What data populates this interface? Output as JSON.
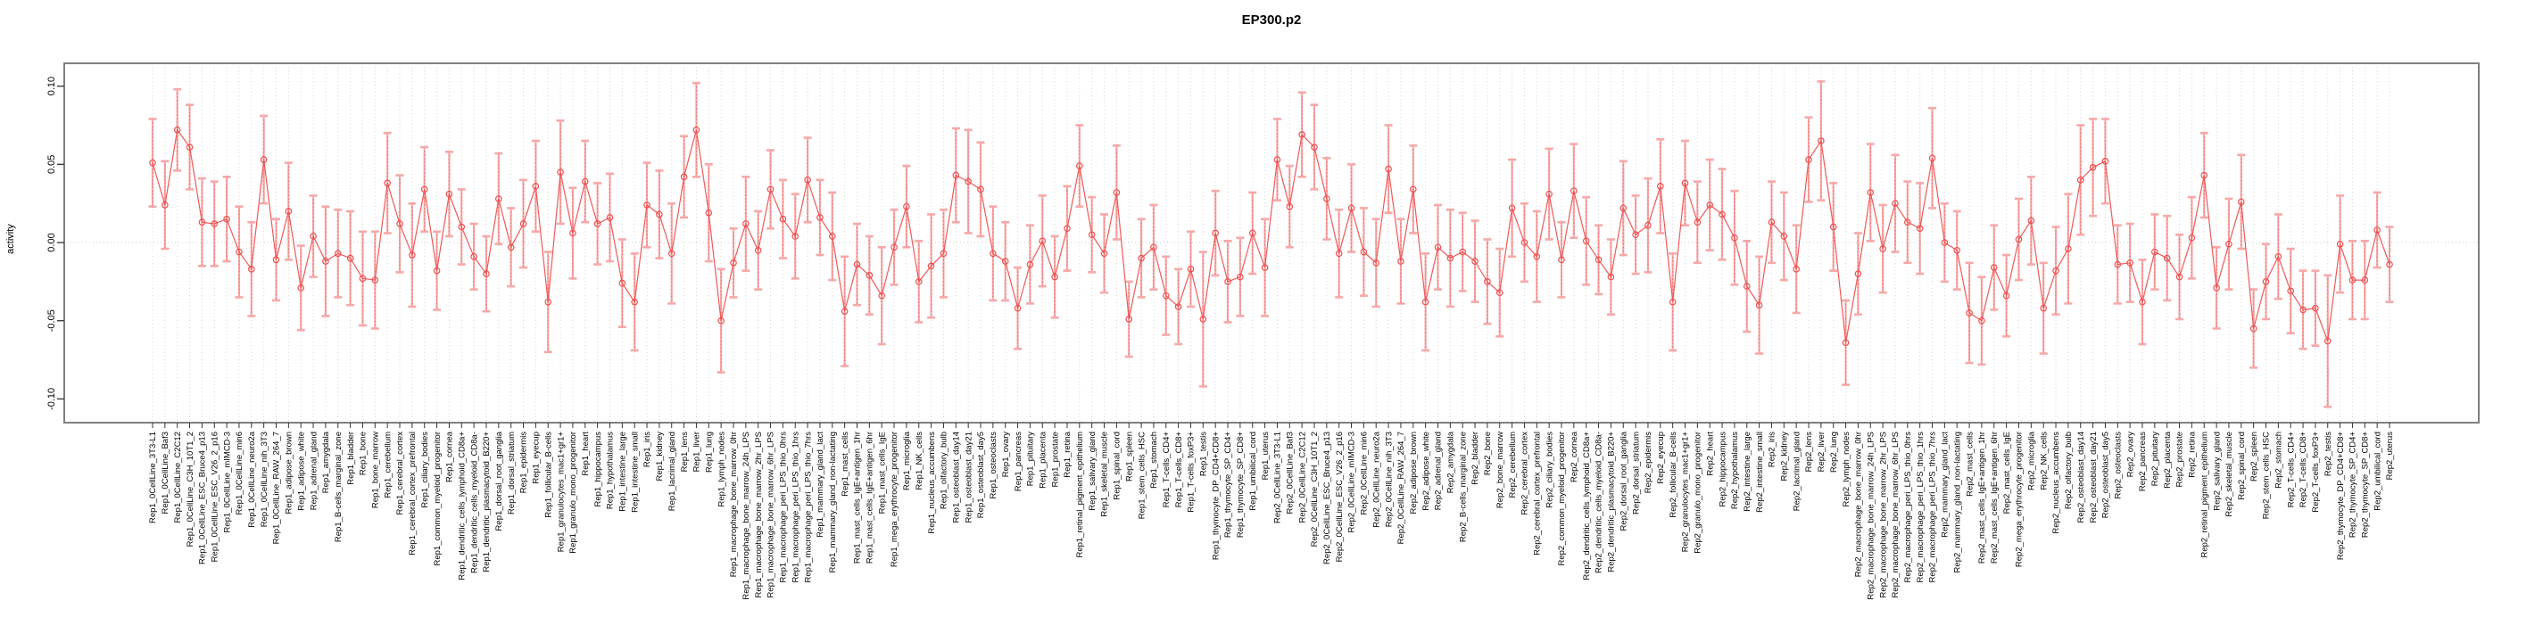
{
  "title": "EP300.p2",
  "chart_data": {
    "type": "line",
    "title": "EP300.p2",
    "subtitle": "",
    "xlabel": "",
    "ylabel": "activity",
    "legend": "none",
    "grid": "vertical dotted gridline per category, dotted horizontal line at zero",
    "ylim": [
      -0.115,
      0.1146
    ],
    "yticks": [
      -0.1,
      -0.05,
      0.0,
      0.05,
      0.1
    ],
    "ytick_labels": [
      "-0.10",
      "-0.05",
      "0.00",
      "0.05",
      "0.10"
    ],
    "colors": {
      "point_line": "#ee5050",
      "error_bar": "#f7a8a8",
      "error_core": "#ee6a6a",
      "gridline": "#d8d8d8",
      "zero_line": "#cccccc",
      "box_border": "#808080",
      "tick": "#333333",
      "text": "#000000"
    },
    "marker": "open-circle",
    "categories": [
      "Rep1_0CellLine_3T3-L1",
      "Rep1_0CellLine_Baf3",
      "Rep1_0CellLine_C2C12",
      "Rep1_0CellLine_C3H_10T1_2",
      "Rep1_0CellLine_ESC_Bruce4_p13",
      "Rep1_0CellLine_ESC_V26_2_p16",
      "Rep1_0CellLine_mIMCD-3",
      "Rep1_0CellLine_min6",
      "Rep1_0CellLine_neuro2a",
      "Rep1_0CellLine_nih_3T3",
      "Rep1_0CellLine_RAW_264_7",
      "Rep1_adipose_brown",
      "Rep1_adipose_white",
      "Rep1_adrenal_gland",
      "Rep1_amygdala",
      "Rep1_B-cells_marginal_zone",
      "Rep1_bladder",
      "Rep1_bone",
      "Rep1_bone_marrow",
      "Rep1_cerebellum",
      "Rep1_cerebral_cortex",
      "Rep1_cerebral_cortex_prefrontal",
      "Rep1_ciliary_bodies",
      "Rep1_common_myeloid_progenitor",
      "Rep1_cornea",
      "Rep1_dendritic_cells_lymphoid_CD8a+",
      "Rep1_dendritic_cells_myeloid_CD8a-",
      "Rep1_dendritic_plasmacytoid_B220+",
      "Rep1_dorsal_root_ganglia",
      "Rep1_dorsal_striatum",
      "Rep1_epidermis",
      "Rep1_eyecup",
      "Rep1_follicular_B-cells",
      "Rep1_granulocytes_mac1+gr1+",
      "Rep1_granulo_mono_progenitor",
      "Rep1_heart",
      "Rep1_hippocampus",
      "Rep1_hypothalamus",
      "Rep1_intestine_large",
      "Rep1_intestine_small",
      "Rep1_iris",
      "Rep1_kidney",
      "Rep1_lacrimal_gland",
      "Rep1_lens",
      "Rep1_liver",
      "Rep1_lung",
      "Rep1_lymph_nodes",
      "Rep1_macrophage_bone_marrow_0hr",
      "Rep1_macrophage_bone_marrow_24h_LPS",
      "Rep1_macrophage_bone_marrow_2hr_LPS",
      "Rep1_macrophage_bone_marrow_6hr_LPS",
      "Rep1_macrophage_peri_LPS_thio_0hrs",
      "Rep1_macrophage_peri_LPS_thio_1hrs",
      "Rep1_macrophage_peri_LPS_thio_7hrs",
      "Rep1_mammary_gland_lact",
      "Rep1_mammary_gland_non-lactating",
      "Rep1_mast_cells",
      "Rep1_mast_cells_IgE+antigen_1hr",
      "Rep1_mast_cells_IgE+antigen_6hr",
      "Rep1_mast_cells_IgE",
      "Rep1_mega_erythrocyte_progenitor",
      "Rep1_microglia",
      "Rep1_NK_cells",
      "Rep1_nucleus_accumbens",
      "Rep1_olfactory_bulb",
      "Rep1_osteoblast_day14",
      "Rep1_osteoblast_day21",
      "Rep1_osteoblast_day5",
      "Rep1_osteoclasts",
      "Rep1_ovary",
      "Rep1_pancreas",
      "Rep1_pituitary",
      "Rep1_placenta",
      "Rep1_prostate",
      "Rep1_retina",
      "Rep1_retinal_pigment_epithelium",
      "Rep1_salivary_gland",
      "Rep1_skeletal_muscle",
      "Rep1_spinal_cord",
      "Rep1_spleen",
      "Rep1_stem_cells_HSC",
      "Rep1_stomach",
      "Rep1_T-cells_CD4+",
      "Rep1_T-cells_CD8+",
      "Rep1_T-cells_foxP3+",
      "Rep1_testis",
      "Rep1_thymocyte_DP_CD4+CD8+",
      "Rep1_thymocyte_SP_CD4+",
      "Rep1_thymocyte_SP_CD8+",
      "Rep1_umbilical_cord",
      "Rep1_uterus",
      "Rep2_0CellLine_3T3-L1",
      "Rep2_0CellLine_Baf3",
      "Rep2_0CellLine_C2C12",
      "Rep2_0CellLine_C3H_10T1_2",
      "Rep2_0CellLine_ESC_Bruce4_p13",
      "Rep2_0CellLine_ESC_V26_2_p16",
      "Rep2_0CellLine_mIMCD-3",
      "Rep2_0CellLine_min6",
      "Rep2_0CellLine_neuro2a",
      "Rep2_0CellLine_nih_3T3",
      "Rep2_0CellLine_RAW_264_7",
      "Rep2_adipose_brown",
      "Rep2_adipose_white",
      "Rep2_adrenal_gland",
      "Rep2_amygdala",
      "Rep2_B-cells_marginal_zone",
      "Rep2_bladder",
      "Rep2_bone",
      "Rep2_bone_marrow",
      "Rep2_cerebellum",
      "Rep2_cerebral_cortex",
      "Rep2_cerebral_cortex_prefrontal",
      "Rep2_ciliary_bodies",
      "Rep2_common_myeloid_progenitor",
      "Rep2_cornea",
      "Rep2_dendritic_cells_lymphoid_CD8a+",
      "Rep2_dendritic_cells_myeloid_CD8a-",
      "Rep2_dendritic_plasmacytoid_B220+",
      "Rep2_dorsal_root_ganglia",
      "Rep2_dorsal_striatum",
      "Rep2_epidermis",
      "Rep2_eyecup",
      "Rep2_follicular_B-cells",
      "Rep2_granulocytes_mac1+gr1+",
      "Rep2_granulo_mono_progenitor",
      "Rep2_heart",
      "Rep2_hippocampus",
      "Rep2_hypothalamus",
      "Rep2_intestine_large",
      "Rep2_intestine_small",
      "Rep2_iris",
      "Rep2_kidney",
      "Rep2_lacrimal_gland",
      "Rep2_lens",
      "Rep2_liver",
      "Rep2_lung",
      "Rep2_lymph_nodes",
      "Rep2_macrophage_bone_marrow_0hr",
      "Rep2_macrophage_bone_marrow_24h_LPS",
      "Rep2_macrophage_bone_marrow_2hr_LPS",
      "Rep2_macrophage_bone_marrow_6hr_LPS",
      "Rep2_macrophage_peri_LPS_thio_0hrs",
      "Rep2_macrophage_peri_LPS_thio_1hrs",
      "Rep2_macrophage_peri_LPS_thio_7hrs",
      "Rep2_mammary_gland_lact",
      "Rep2_mammary_gland_non-lactating",
      "Rep2_mast_cells",
      "Rep2_mast_cells_IgE+antigen_1hr",
      "Rep2_mast_cells_IgE+antigen_6hr",
      "Rep2_mast_cells_IgE",
      "Rep2_mega_erythrocyte_progenitor",
      "Rep2_microglia",
      "Rep2_NK_cells",
      "Rep2_nucleus_accumbens",
      "Rep2_olfactory_bulb",
      "Rep2_osteoblast_day14",
      "Rep2_osteoblast_day21",
      "Rep2_osteoblast_day5",
      "Rep2_osteoclasts",
      "Rep2_ovary",
      "Rep2_pancreas",
      "Rep2_pituitary",
      "Rep2_placenta",
      "Rep2_prostate",
      "Rep2_retina",
      "Rep2_retinal_pigment_epithelium",
      "Rep2_salivary_gland",
      "Rep2_skeletal_muscle",
      "Rep2_spinal_cord",
      "Rep2_spleen",
      "Rep2_stem_cells_HSC",
      "Rep2_stomach",
      "Rep2_T-cells_CD4+",
      "Rep2_T-cells_CD8+",
      "Rep2_T-cells_foxP3+",
      "Rep2_testis",
      "Rep2_thymocyte_DP_CD4+CD8+",
      "Rep2_thymocyte_SP_CD4+",
      "Rep2_thymocyte_SP_CD8+",
      "Rep2_umbilical_cord",
      "Rep2_uterus"
    ],
    "values": [
      0.051,
      0.024,
      0.072,
      0.061,
      0.013,
      0.012,
      0.015,
      -0.006,
      -0.017,
      0.053,
      -0.011,
      0.02,
      -0.029,
      0.004,
      -0.012,
      -0.007,
      -0.01,
      -0.023,
      -0.024,
      0.038,
      0.012,
      -0.008,
      0.034,
      -0.018,
      0.031,
      0.01,
      -0.009,
      -0.02,
      0.028,
      -0.003,
      0.012,
      0.036,
      -0.038,
      0.045,
      0.006,
      0.039,
      0.012,
      0.016,
      -0.026,
      -0.038,
      0.024,
      0.018,
      -0.007,
      0.042,
      0.072,
      0.019,
      -0.05,
      -0.013,
      0.012,
      -0.005,
      0.034,
      0.015,
      0.004,
      0.04,
      0.016,
      0.004,
      -0.044,
      -0.014,
      -0.021,
      -0.034,
      -0.003,
      0.023,
      -0.025,
      -0.015,
      -0.007,
      0.043,
      0.039,
      0.034,
      -0.007,
      -0.012,
      -0.042,
      -0.014,
      0.001,
      -0.022,
      0.009,
      0.049,
      0.005,
      -0.007,
      0.032,
      -0.049,
      -0.01,
      -0.003,
      -0.034,
      -0.041,
      -0.017,
      -0.049,
      0.006,
      -0.025,
      -0.022,
      0.006,
      -0.016,
      0.053,
      0.023,
      0.069,
      0.061,
      0.028,
      -0.007,
      0.022,
      -0.006,
      -0.013,
      0.047,
      -0.012,
      0.034,
      -0.038,
      -0.003,
      -0.01,
      -0.006,
      -0.012,
      -0.025,
      -0.032,
      0.022,
      0.0,
      -0.009,
      0.031,
      -0.011,
      0.033,
      0.001,
      -0.011,
      -0.022,
      0.022,
      0.005,
      0.011,
      0.036,
      -0.038,
      0.038,
      0.013,
      0.024,
      0.018,
      0.003,
      -0.028,
      -0.04,
      0.013,
      0.004,
      -0.017,
      0.053,
      0.065,
      0.01,
      -0.064,
      -0.02,
      0.032,
      -0.004,
      0.025,
      0.013,
      0.009,
      0.054,
      0.0,
      -0.005,
      -0.045,
      -0.05,
      -0.016,
      -0.034,
      0.002,
      0.014,
      -0.042,
      -0.018,
      -0.004,
      0.04,
      0.048,
      0.052,
      -0.014,
      -0.013,
      -0.038,
      -0.006,
      -0.01,
      -0.022,
      0.003,
      0.043,
      -0.029,
      -0.001,
      0.026,
      -0.055,
      -0.025,
      -0.009,
      -0.031,
      -0.043,
      -0.042,
      -0.063,
      -0.001,
      -0.024,
      -0.024,
      0.008,
      -0.014
    ],
    "errors": [
      0.028,
      0.028,
      0.026,
      0.027,
      0.028,
      0.027,
      0.027,
      0.029,
      0.03,
      0.028,
      0.026,
      0.031,
      0.027,
      0.026,
      0.035,
      0.028,
      0.03,
      0.03,
      0.031,
      0.032,
      0.031,
      0.033,
      0.027,
      0.025,
      0.027,
      0.024,
      0.021,
      0.024,
      0.029,
      0.025,
      0.028,
      0.029,
      0.032,
      0.033,
      0.029,
      0.026,
      0.026,
      0.028,
      0.028,
      0.031,
      0.027,
      0.028,
      0.032,
      0.026,
      0.03,
      0.031,
      0.033,
      0.022,
      0.03,
      0.025,
      0.025,
      0.025,
      0.027,
      0.027,
      0.024,
      0.028,
      0.035,
      0.026,
      0.025,
      0.031,
      0.024,
      0.026,
      0.026,
      0.033,
      0.028,
      0.03,
      0.033,
      0.03,
      0.03,
      0.025,
      0.026,
      0.025,
      0.029,
      0.026,
      0.027,
      0.026,
      0.024,
      0.025,
      0.03,
      0.024,
      0.025,
      0.027,
      0.025,
      0.024,
      0.024,
      0.043,
      0.027,
      0.026,
      0.025,
      0.026,
      0.031,
      0.026,
      0.026,
      0.027,
      0.027,
      0.026,
      0.028,
      0.028,
      0.028,
      0.028,
      0.028,
      0.027,
      0.028,
      0.031,
      0.027,
      0.031,
      0.025,
      0.026,
      0.027,
      0.028,
      0.031,
      0.025,
      0.029,
      0.029,
      0.024,
      0.03,
      0.028,
      0.022,
      0.024,
      0.03,
      0.025,
      0.03,
      0.03,
      0.031,
      0.027,
      0.026,
      0.029,
      0.029,
      0.03,
      0.029,
      0.031,
      0.026,
      0.028,
      0.028,
      0.027,
      0.038,
      0.028,
      0.027,
      0.026,
      0.031,
      0.028,
      0.031,
      0.026,
      0.029,
      0.032,
      0.025,
      0.025,
      0.032,
      0.028,
      0.027,
      0.026,
      0.026,
      0.028,
      0.029,
      0.028,
      0.035,
      0.035,
      0.031,
      0.027,
      0.025,
      0.025,
      0.027,
      0.024,
      0.027,
      0.027,
      0.026,
      0.027,
      0.026,
      0.029,
      0.03,
      0.025,
      0.024,
      0.027,
      0.027,
      0.025,
      0.024,
      0.042,
      0.031,
      0.025,
      0.025,
      0.024,
      0.024
    ]
  }
}
